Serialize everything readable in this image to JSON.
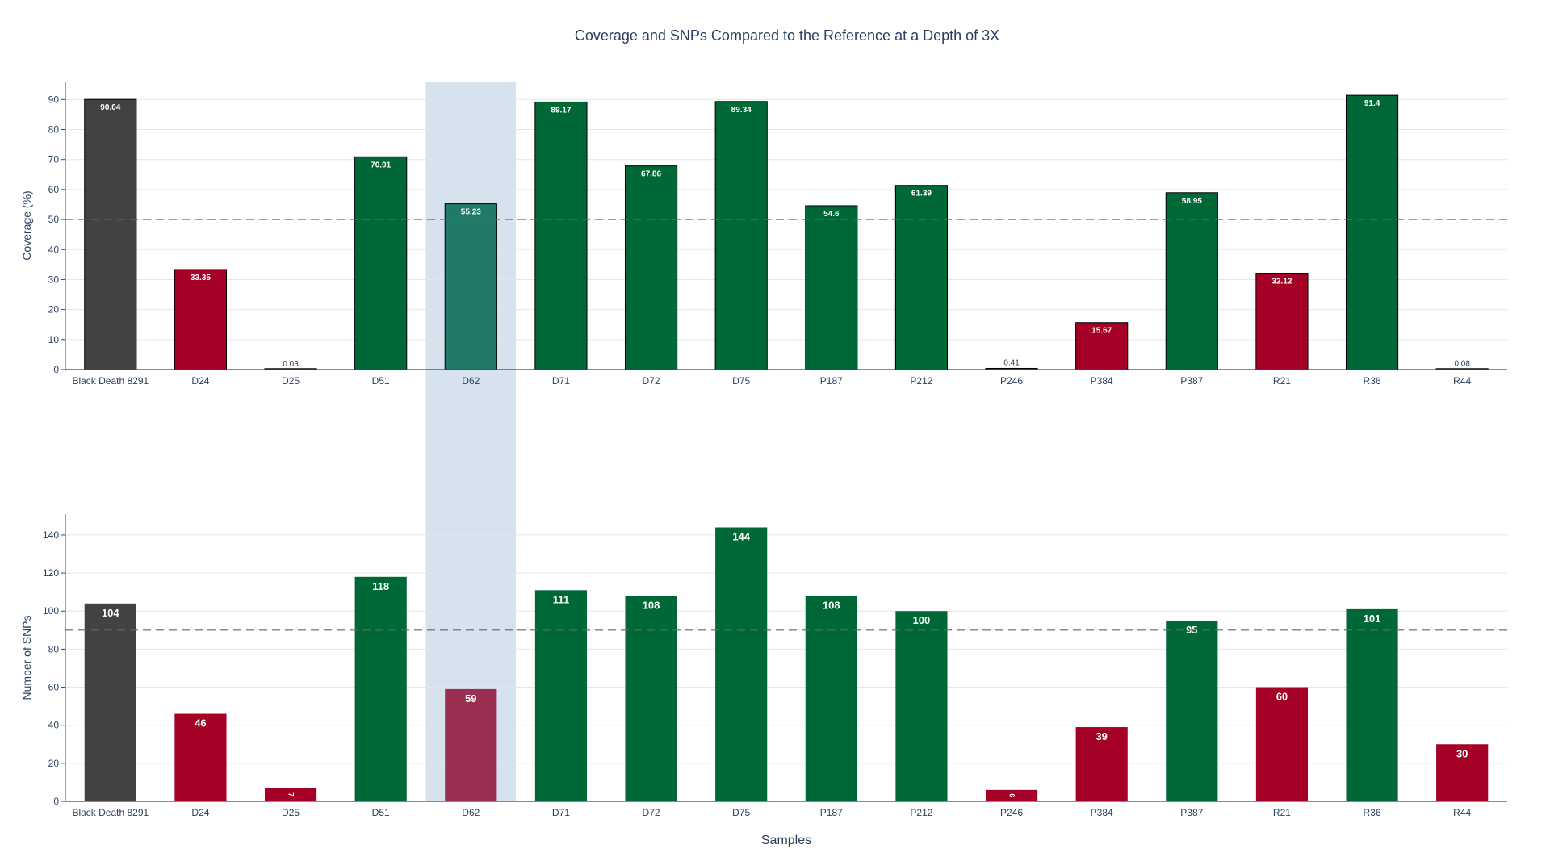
{
  "title": "Coverage and SNPs Compared to the Reference at a Depth of 3X",
  "highlight_category": "D62",
  "colors": {
    "background": "#ffffff",
    "title_text": "#2a3f5f",
    "tick_text": "#2a3f5f",
    "grid": "#e2e6ec",
    "axis_line": "#444444",
    "threshold_line": "#666666",
    "highlight_band": "#d6e2ee",
    "reference": "#424242",
    "pass": "#006837",
    "fail": "#a50026",
    "highlight_pass": "#207a67",
    "highlight_fail": "#992f53",
    "label_inside": "#ffffff",
    "label_outside": "#2a3f5f"
  },
  "chart_data": [
    {
      "type": "bar",
      "name": "coverage",
      "ylabel": "Coverage (%)",
      "xlabel": "",
      "ylim": [
        0,
        96
      ],
      "yticks": [
        0,
        10,
        20,
        30,
        40,
        50,
        60,
        70,
        80,
        90
      ],
      "threshold": 50,
      "bar_outline": true,
      "label_size": "small",
      "categories": [
        "Black Death 8291",
        "D24",
        "D25",
        "D51",
        "D62",
        "D71",
        "D72",
        "D75",
        "P187",
        "P212",
        "P246",
        "P384",
        "P387",
        "R21",
        "R36",
        "R44"
      ],
      "values": [
        90.04,
        33.35,
        0.03,
        70.91,
        55.23,
        89.17,
        67.86,
        89.34,
        54.6,
        61.39,
        0.41,
        15.67,
        58.95,
        32.12,
        91.4,
        0.08
      ],
      "labels": [
        "90.04",
        "33.35",
        "0.03",
        "70.91",
        "55.23",
        "89.17",
        "67.86",
        "89.34",
        "54.6",
        "61.39",
        "0.41",
        "15.67",
        "58.95",
        "32.12",
        "91.4",
        "0.08"
      ],
      "status": [
        "reference",
        "fail",
        "fail",
        "pass",
        "pass",
        "pass",
        "pass",
        "pass",
        "pass",
        "pass",
        "fail",
        "fail",
        "pass",
        "fail",
        "pass",
        "fail"
      ]
    },
    {
      "type": "bar",
      "name": "snps",
      "ylabel": "Number of SNPs",
      "xlabel": "Samples",
      "ylim": [
        0,
        151
      ],
      "yticks": [
        0,
        20,
        40,
        60,
        80,
        100,
        120,
        140
      ],
      "threshold": 90,
      "bar_outline": false,
      "label_size": "large",
      "categories": [
        "Black Death 8291",
        "D24",
        "D25",
        "D51",
        "D62",
        "D71",
        "D72",
        "D75",
        "P187",
        "P212",
        "P246",
        "P384",
        "P387",
        "R21",
        "R36",
        "R44"
      ],
      "values": [
        104,
        46,
        7,
        118,
        59,
        111,
        108,
        144,
        108,
        100,
        6,
        39,
        95,
        60,
        101,
        30
      ],
      "labels": [
        "104",
        "46",
        "7",
        "118",
        "59",
        "111",
        "108",
        "144",
        "108",
        "100",
        "6",
        "39",
        "95",
        "60",
        "101",
        "30"
      ],
      "status": [
        "reference",
        "fail",
        "fail",
        "pass",
        "fail",
        "pass",
        "pass",
        "pass",
        "pass",
        "pass",
        "fail",
        "fail",
        "pass",
        "fail",
        "pass",
        "fail"
      ]
    }
  ]
}
